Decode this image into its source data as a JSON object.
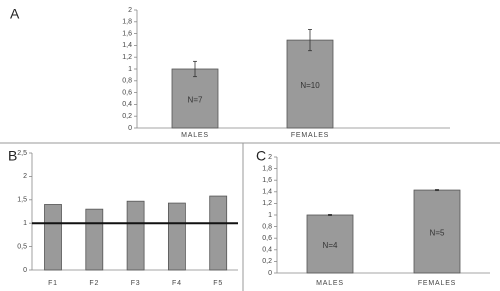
{
  "chart_data": [
    {
      "type": "bar",
      "panel_label": "A",
      "categories": [
        "MALES",
        "FEMALES"
      ],
      "values": [
        1.0,
        1.49
      ],
      "errors": [
        0.13,
        0.18
      ],
      "bar_labels": [
        "N=7",
        "N=10"
      ],
      "color": "#9a9a9a",
      "ylim": [
        0,
        2
      ],
      "yticks": [
        0,
        {
          "value": 0.2,
          "label": "0,2"
        },
        {
          "value": 0.4,
          "label": "0,4"
        },
        {
          "value": 0.6,
          "label": "0,6"
        },
        {
          "value": 0.8,
          "label": "0,8"
        },
        1,
        {
          "value": 1.2,
          "label": "1,2"
        },
        {
          "value": 1.4,
          "label": "1,4"
        },
        {
          "value": 1.6,
          "label": "1,6"
        },
        {
          "value": 1.8,
          "label": "1,8"
        },
        2
      ]
    },
    {
      "type": "bar",
      "panel_label": "B",
      "categories": [
        "F1",
        "F2",
        "F3",
        "F4",
        "F5"
      ],
      "values": [
        1.4,
        1.3,
        1.47,
        1.43,
        1.58
      ],
      "reference_line": 1,
      "color": "#9a9a9a",
      "ylim": [
        0,
        2.5
      ],
      "yticks": [
        0,
        {
          "value": 0.5,
          "label": "0,5"
        },
        1,
        {
          "value": 1.5,
          "label": "1,5"
        },
        2,
        {
          "value": 2.5,
          "label": "2,5"
        }
      ]
    },
    {
      "type": "bar",
      "panel_label": "C",
      "categories": [
        "MALES",
        "FEMALES"
      ],
      "values": [
        1.0,
        1.43
      ],
      "errors": [
        0.01,
        0.01
      ],
      "bar_labels": [
        "N=4",
        "N=5"
      ],
      "color": "#9a9a9a",
      "ylim": [
        0,
        2
      ],
      "yticks": [
        0,
        {
          "value": 0.2,
          "label": "0,2"
        },
        {
          "value": 0.4,
          "label": "0,4"
        },
        {
          "value": 0.6,
          "label": "0,6"
        },
        {
          "value": 0.8,
          "label": "0,8"
        },
        1,
        {
          "value": 1.2,
          "label": "1,2"
        },
        {
          "value": 1.4,
          "label": "1,4"
        },
        {
          "value": 1.6,
          "label": "1,6"
        },
        {
          "value": 1.8,
          "label": "1,8"
        },
        2
      ]
    }
  ]
}
